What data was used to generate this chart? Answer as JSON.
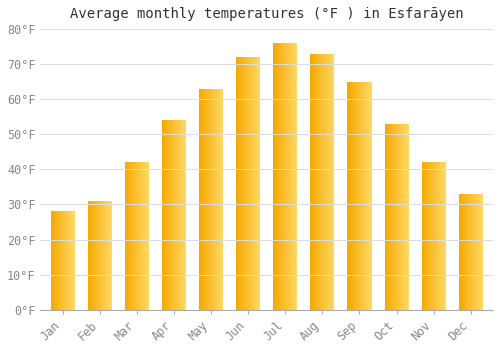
{
  "title": "Average monthly temperatures (°F ) in Esfarāyen",
  "months": [
    "Jan",
    "Feb",
    "Mar",
    "Apr",
    "May",
    "Jun",
    "Jul",
    "Aug",
    "Sep",
    "Oct",
    "Nov",
    "Dec"
  ],
  "values": [
    28,
    31,
    42,
    54,
    63,
    72,
    76,
    73,
    65,
    53,
    42,
    33
  ],
  "bar_color_left": "#F5A800",
  "bar_color_right": "#FFD966",
  "background_color": "#FFFFFF",
  "grid_color": "#DDDDDD",
  "ylim": [
    0,
    80
  ],
  "yticks": [
    0,
    10,
    20,
    30,
    40,
    50,
    60,
    70,
    80
  ],
  "title_fontsize": 10,
  "tick_fontsize": 8.5
}
